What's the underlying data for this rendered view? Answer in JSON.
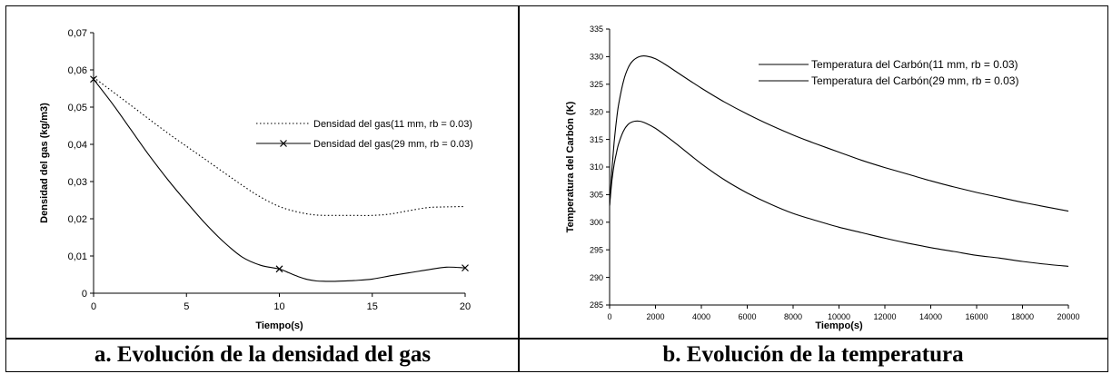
{
  "captions": {
    "left": "a. Evolución de la densidad del gas",
    "right": "b. Evolución de la temperatura"
  },
  "chart_data": [
    {
      "type": "line",
      "xlabel": "Tiempo(s)",
      "ylabel": "Densidad del gas (kg/m3)",
      "xlim": [
        0,
        20
      ],
      "ylim": [
        0,
        0.07
      ],
      "xticks": [
        "0",
        "5",
        "10",
        "15",
        "20"
      ],
      "yticks": [
        "0",
        "0,01",
        "0,02",
        "0,03",
        "0,04",
        "0,05",
        "0,06",
        "0,07"
      ],
      "grid": false,
      "legend_position": "right",
      "series": [
        {
          "name": "Densidad del gas(11 mm, rb = 0.03)",
          "style": "dotted",
          "marker": "none",
          "color": "#000000",
          "x": [
            0,
            2,
            4,
            6,
            8,
            9,
            10,
            11,
            12,
            13,
            14,
            15,
            16,
            17,
            18,
            19,
            20
          ],
          "y": [
            0.058,
            0.0505,
            0.043,
            0.036,
            0.029,
            0.0258,
            0.0233,
            0.0218,
            0.021,
            0.0209,
            0.0209,
            0.0209,
            0.0213,
            0.0222,
            0.023,
            0.0232,
            0.0233
          ]
        },
        {
          "name": "Densidad del gas(29 mm, rb = 0.03)",
          "style": "solid",
          "marker": "x",
          "marker_x": [
            0,
            10,
            20
          ],
          "color": "#000000",
          "x": [
            0,
            1,
            2,
            3,
            4,
            5,
            6,
            7,
            8,
            9,
            10,
            10.5,
            11,
            11.5,
            12,
            12.5,
            13,
            14,
            15,
            16,
            17,
            18,
            19,
            20
          ],
          "y": [
            0.0575,
            0.051,
            0.044,
            0.037,
            0.0305,
            0.0245,
            0.0188,
            0.0138,
            0.0097,
            0.0075,
            0.0065,
            0.0055,
            0.0045,
            0.0037,
            0.0033,
            0.0032,
            0.0032,
            0.0034,
            0.0038,
            0.0047,
            0.0055,
            0.0063,
            0.007,
            0.0068
          ]
        }
      ]
    },
    {
      "type": "line",
      "xlabel": "Tiempo(s)",
      "ylabel": "Temperatura del Carbón (K)",
      "xlim": [
        0,
        20000
      ],
      "ylim": [
        285,
        335
      ],
      "xticks": [
        "0",
        "2000",
        "4000",
        "6000",
        "8000",
        "10000",
        "12000",
        "14000",
        "16000",
        "18000",
        "20000"
      ],
      "yticks": [
        "285",
        "290",
        "295",
        "300",
        "305",
        "310",
        "315",
        "320",
        "325",
        "330",
        "335"
      ],
      "grid": false,
      "legend_position": "top-right",
      "series": [
        {
          "name": "Temperatura del Carbón(11 mm, rb = 0.03)",
          "style": "solid",
          "marker": "none",
          "color": "#000000",
          "x": [
            0,
            100,
            200,
            300,
            400,
            600,
            800,
            1000,
            1300,
            1600,
            2000,
            2500,
            3000,
            4000,
            5000,
            6000,
            7000,
            8000,
            9000,
            10000,
            11000,
            12000,
            13000,
            14000,
            15000,
            16000,
            17000,
            18000,
            19000,
            20000
          ],
          "y": [
            303,
            307.5,
            310.5,
            312.6,
            314.3,
            316.5,
            317.7,
            318.2,
            318.3,
            317.9,
            317.0,
            315.5,
            313.9,
            310.6,
            307.7,
            305.3,
            303.3,
            301.6,
            300.3,
            299.1,
            298.1,
            297.1,
            296.2,
            295.4,
            294.7,
            294.0,
            293.5,
            292.9,
            292.4,
            292.0
          ]
        },
        {
          "name": "Temperatura del Carbón(29 mm, rb = 0.03)",
          "style": "solid",
          "marker": "none",
          "color": "#000000",
          "x": [
            0,
            100,
            200,
            300,
            400,
            600,
            800,
            1000,
            1300,
            1600,
            2000,
            2500,
            3000,
            4000,
            5000,
            6000,
            7000,
            8000,
            9000,
            10000,
            11000,
            12000,
            13000,
            14000,
            15000,
            16000,
            17000,
            18000,
            19000,
            20000
          ],
          "y": [
            303,
            309.5,
            314.5,
            318.5,
            321.5,
            325.5,
            327.9,
            329.2,
            330.0,
            330.1,
            329.6,
            328.4,
            327.0,
            324.3,
            321.8,
            319.6,
            317.6,
            315.8,
            314.2,
            312.7,
            311.2,
            309.9,
            308.7,
            307.5,
            306.4,
            305.4,
            304.5,
            303.6,
            302.8,
            302.0
          ]
        }
      ]
    }
  ]
}
